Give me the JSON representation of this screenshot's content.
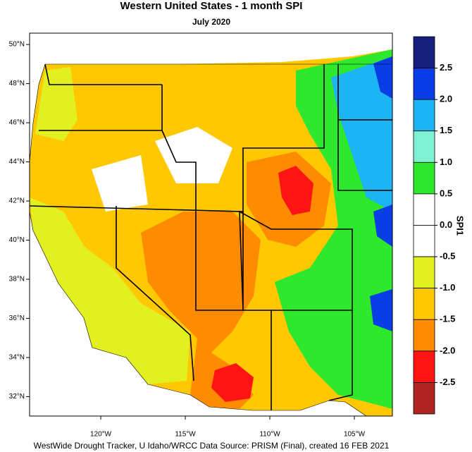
{
  "title": "Western United States - 1 month SPI",
  "subtitle": "July 2020",
  "map": {
    "lat_lim": [
      31.01,
      50.58
    ],
    "lon_lim": [
      -124.21,
      -102.75
    ],
    "lat_ticks": [
      {
        "value": 50,
        "label": "50°N"
      },
      {
        "value": 48,
        "label": "48°N"
      },
      {
        "value": 46,
        "label": "46°N"
      },
      {
        "value": 44,
        "label": "44°N"
      },
      {
        "value": 42,
        "label": "42°N"
      },
      {
        "value": 40,
        "label": "40°N"
      },
      {
        "value": 38,
        "label": "38°N"
      },
      {
        "value": 36,
        "label": "36°N"
      },
      {
        "value": 34,
        "label": "34°N"
      },
      {
        "value": 32,
        "label": "32°N"
      }
    ],
    "lon_ticks": [
      {
        "value": -120,
        "label": "120°W"
      },
      {
        "value": -115,
        "label": "115°W"
      },
      {
        "value": -110,
        "label": "110°W"
      },
      {
        "value": -105,
        "label": "105°W"
      }
    ]
  },
  "colorbar": {
    "label": "SPI1",
    "lim": [
      -3,
      3
    ],
    "ticks": [
      2.5,
      {
        "value": 2,
        "label": "2.0"
      },
      1.5,
      {
        "value": 1,
        "label": "1.0"
      },
      0.5,
      {
        "value": 0,
        "label": "0.0"
      },
      -0.5,
      {
        "value": -1,
        "label": "-1.0"
      },
      -1.5,
      {
        "value": -2,
        "label": "-2.0"
      },
      -2.5
    ],
    "colors": [
      "#16207a",
      "#0a3de6",
      "#1cb4f2",
      "#7ff2d2",
      "#2de82d",
      "#ffffff",
      "#ffffff",
      "#e2f022",
      "#ffc800",
      "#ff8c00",
      "#ff1414",
      "#b02424"
    ]
  },
  "footer": "WestWide Drought Tracker, U Idaho/WRCC Data Source: PRISM (Final), created 16 FEB 2021"
}
